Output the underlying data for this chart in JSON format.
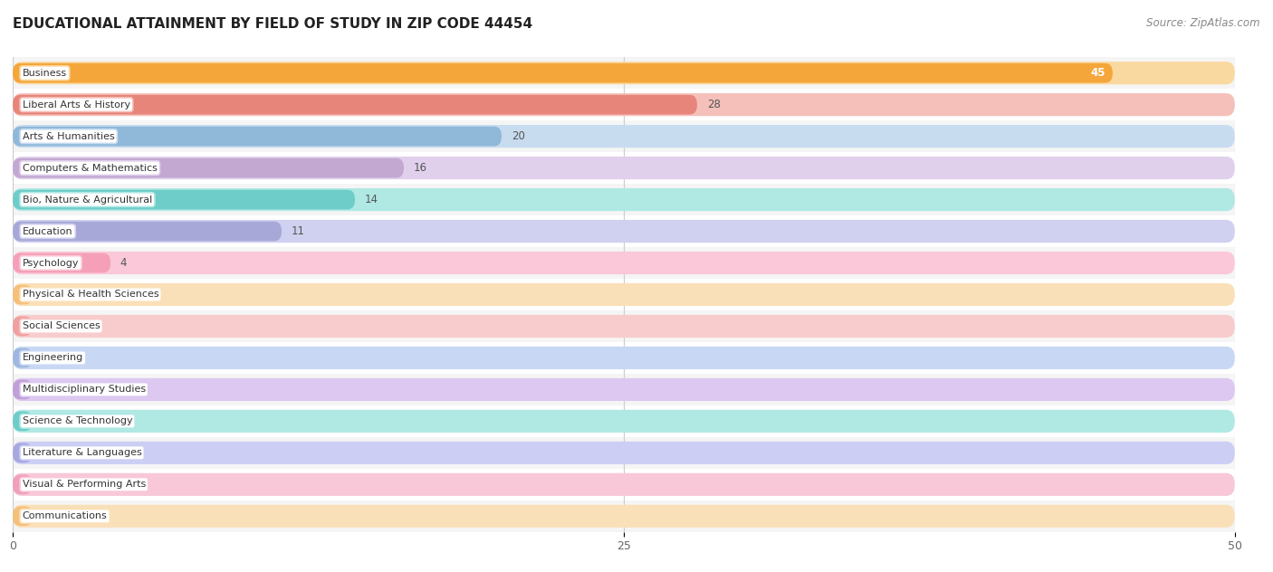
{
  "title": "EDUCATIONAL ATTAINMENT BY FIELD OF STUDY IN ZIP CODE 44454",
  "source": "Source: ZipAtlas.com",
  "categories": [
    "Business",
    "Liberal Arts & History",
    "Arts & Humanities",
    "Computers & Mathematics",
    "Bio, Nature & Agricultural",
    "Education",
    "Psychology",
    "Physical & Health Sciences",
    "Social Sciences",
    "Engineering",
    "Multidisciplinary Studies",
    "Science & Technology",
    "Literature & Languages",
    "Visual & Performing Arts",
    "Communications"
  ],
  "values": [
    45,
    28,
    20,
    16,
    14,
    11,
    4,
    0,
    0,
    0,
    0,
    0,
    0,
    0,
    0
  ],
  "bar_colors": [
    "#F5A63A",
    "#E8857A",
    "#90B8D8",
    "#C3A8D1",
    "#6ECDC8",
    "#A8A8D8",
    "#F5A0B8",
    "#F5C07A",
    "#F0A0A0",
    "#A0B8E0",
    "#C0A0D8",
    "#6ECDC8",
    "#A8A8E0",
    "#F0A0B8",
    "#F5C07A"
  ],
  "track_colors": [
    "#FAD9A0",
    "#F5C0BA",
    "#C8DCF0",
    "#E0D0EC",
    "#B0E8E4",
    "#D0D0F0",
    "#FAC8D8",
    "#FAE0B8",
    "#F8CCCC",
    "#C8D8F4",
    "#DCC8F0",
    "#B0E8E4",
    "#CCCEF4",
    "#F8C8D8",
    "#FAE0B8"
  ],
  "xlim_max": 50,
  "xticks": [
    0,
    25,
    50
  ],
  "background_color": "#ffffff",
  "row_bg_odd": "#f5f5f5",
  "row_bg_even": "#ffffff"
}
